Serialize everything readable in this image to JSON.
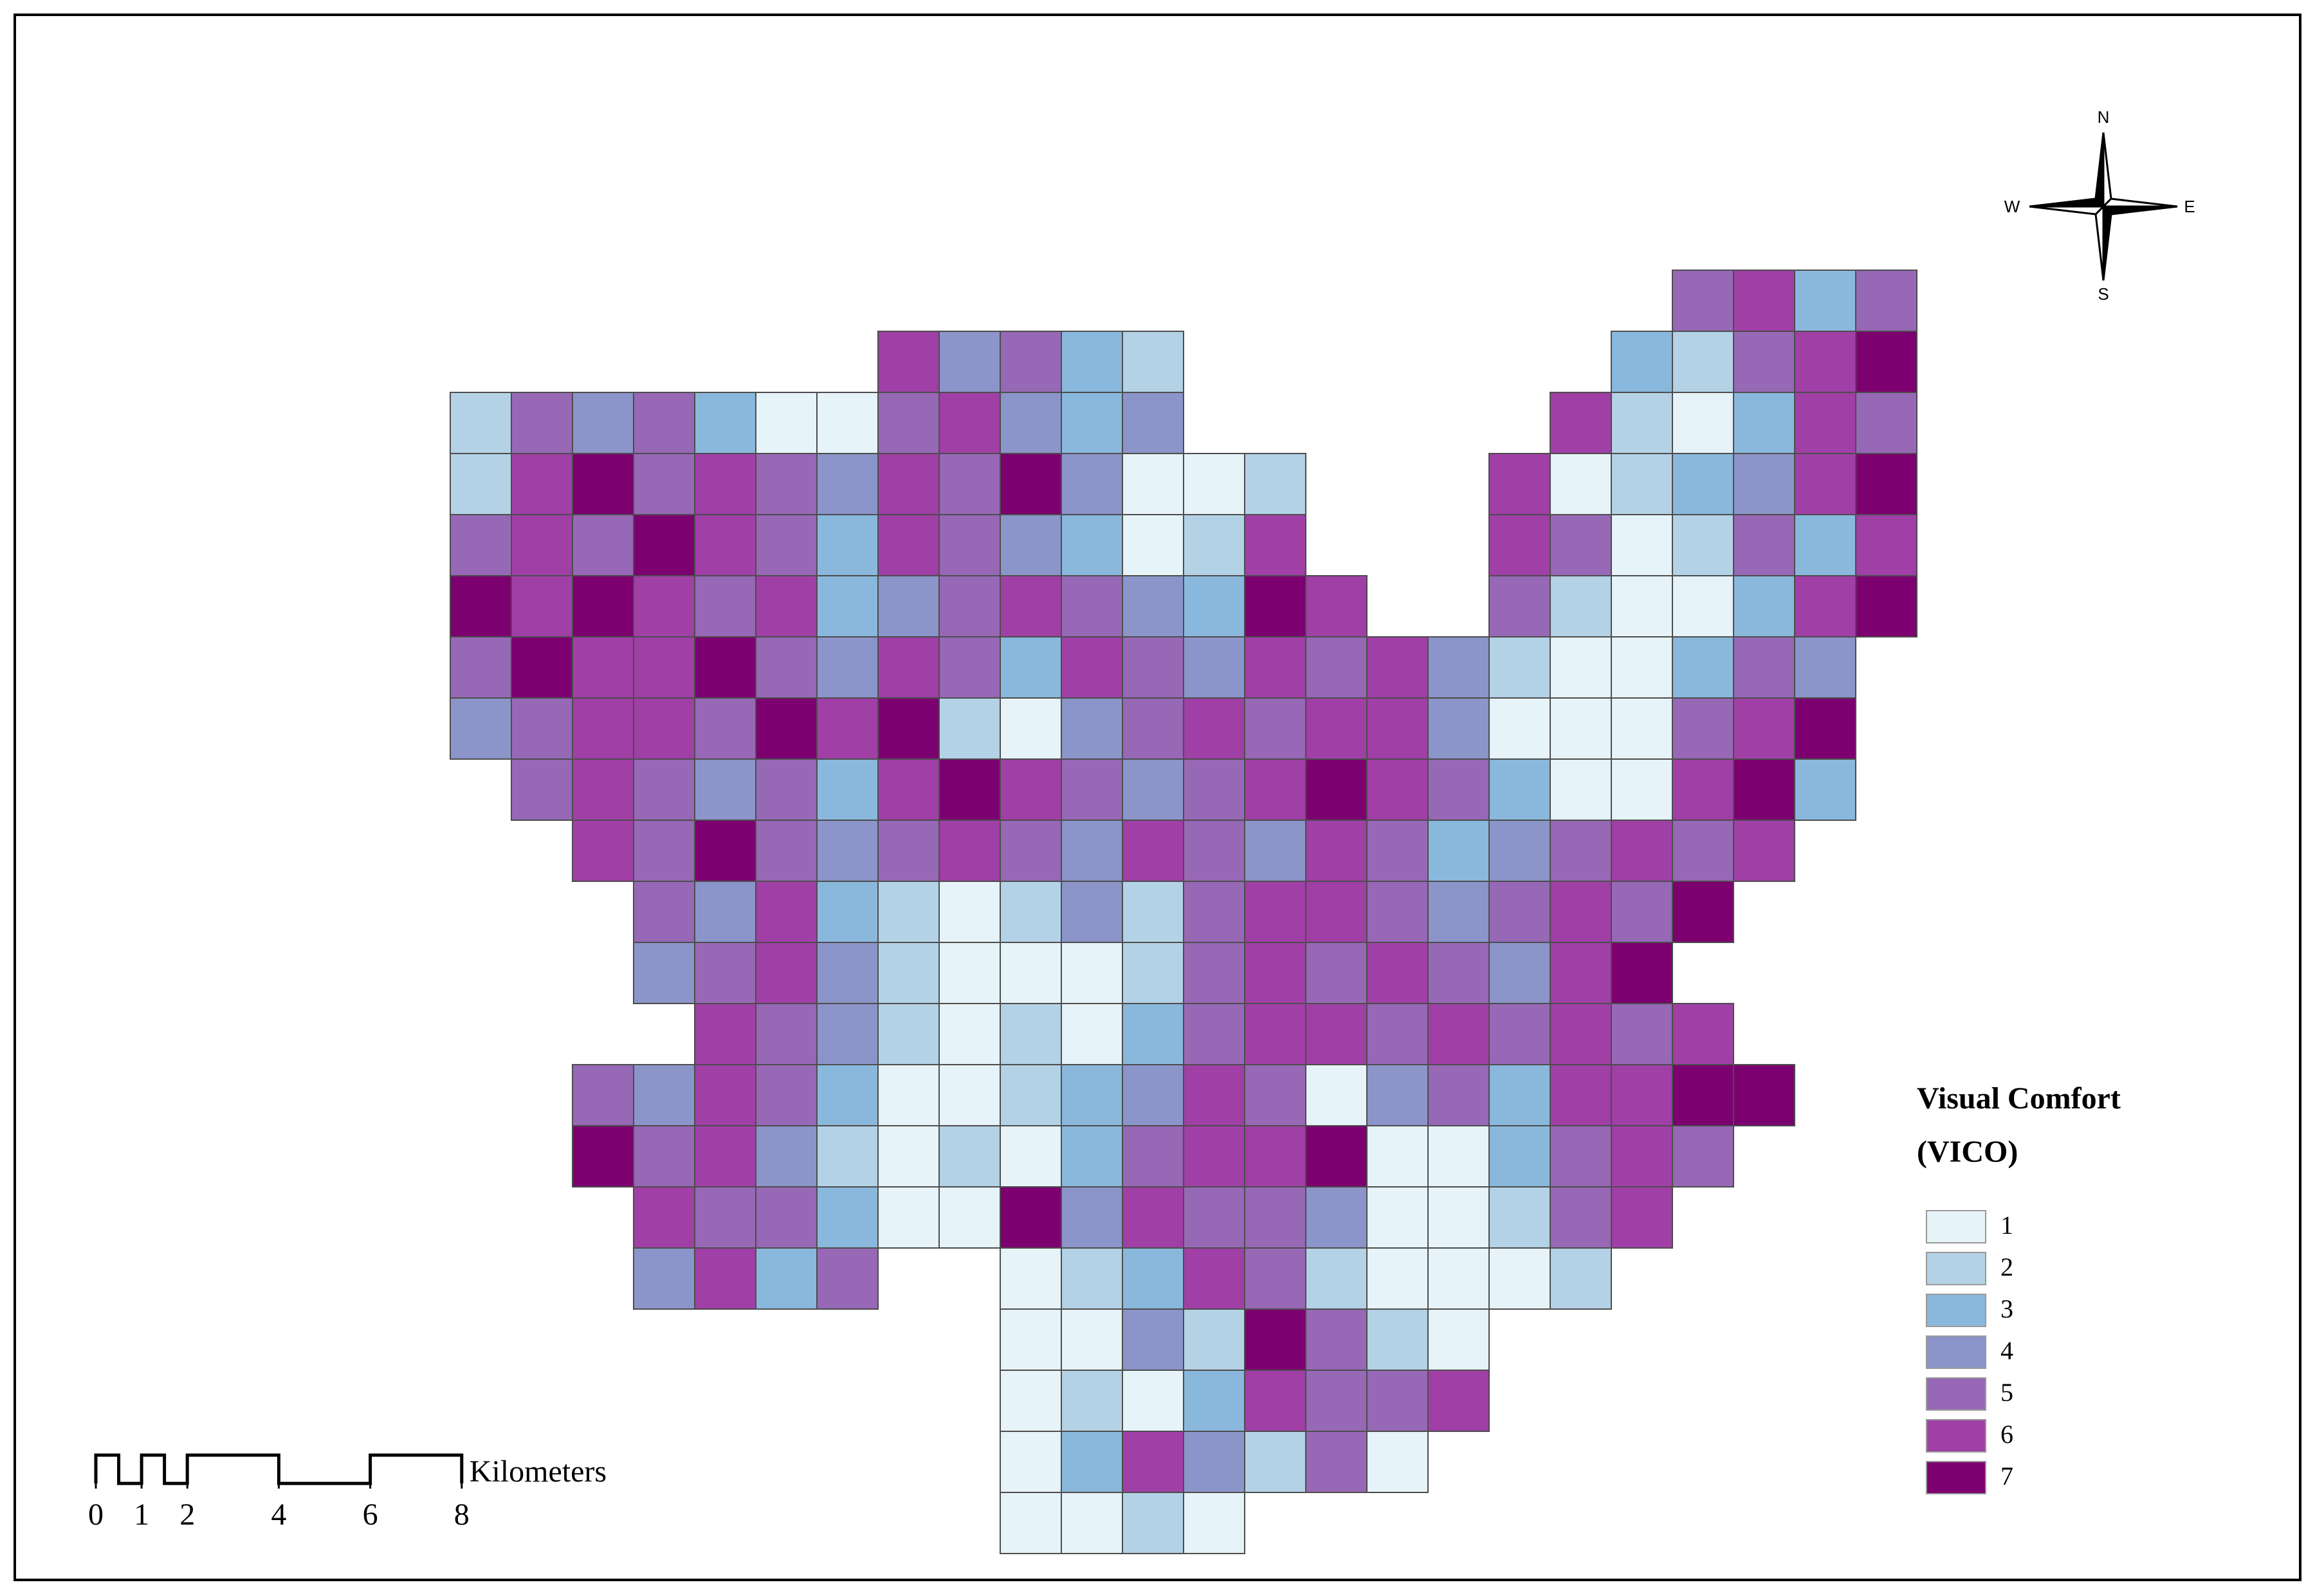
{
  "map": {
    "cells": [
      [
        null,
        null,
        null,
        null,
        null,
        null,
        null,
        null,
        null,
        null,
        null,
        null,
        null,
        null,
        null,
        null,
        null,
        null,
        null,
        null,
        5,
        6,
        3,
        5
      ],
      [
        null,
        null,
        null,
        null,
        null,
        null,
        null,
        6,
        4,
        5,
        3,
        2,
        null,
        null,
        null,
        null,
        null,
        null,
        null,
        3,
        2,
        5,
        6,
        7
      ],
      [
        2,
        5,
        4,
        5,
        3,
        1,
        1,
        5,
        6,
        4,
        3,
        4,
        null,
        null,
        null,
        null,
        null,
        null,
        6,
        2,
        1,
        3,
        6,
        5
      ],
      [
        2,
        6,
        7,
        5,
        6,
        5,
        4,
        6,
        5,
        7,
        4,
        1,
        1,
        2,
        null,
        null,
        null,
        6,
        1,
        2,
        3,
        4,
        6,
        7
      ],
      [
        5,
        6,
        5,
        7,
        6,
        5,
        3,
        6,
        5,
        4,
        3,
        1,
        2,
        6,
        null,
        null,
        null,
        6,
        5,
        1,
        2,
        5,
        3,
        6
      ],
      [
        7,
        6,
        7,
        6,
        5,
        6,
        3,
        4,
        5,
        6,
        5,
        4,
        3,
        7,
        6,
        null,
        null,
        5,
        2,
        1,
        1,
        3,
        6,
        7
      ],
      [
        5,
        7,
        6,
        6,
        7,
        5,
        4,
        6,
        5,
        3,
        6,
        5,
        4,
        6,
        5,
        6,
        4,
        2,
        1,
        1,
        3,
        5,
        4,
        null
      ],
      [
        4,
        5,
        6,
        6,
        5,
        7,
        6,
        7,
        2,
        1,
        4,
        5,
        6,
        5,
        6,
        6,
        4,
        1,
        1,
        1,
        5,
        6,
        7,
        null
      ],
      [
        null,
        5,
        6,
        5,
        4,
        5,
        3,
        6,
        7,
        6,
        5,
        4,
        5,
        6,
        7,
        6,
        5,
        3,
        1,
        1,
        6,
        7,
        3,
        null
      ],
      [
        null,
        null,
        6,
        5,
        7,
        5,
        4,
        5,
        6,
        5,
        4,
        6,
        5,
        4,
        6,
        5,
        3,
        4,
        5,
        6,
        5,
        6,
        null,
        null
      ],
      [
        null,
        null,
        null,
        5,
        4,
        6,
        3,
        2,
        1,
        2,
        4,
        2,
        5,
        6,
        6,
        5,
        4,
        5,
        6,
        5,
        7,
        null,
        null,
        null
      ],
      [
        null,
        null,
        null,
        4,
        5,
        6,
        4,
        2,
        1,
        1,
        1,
        2,
        5,
        6,
        5,
        6,
        5,
        4,
        6,
        7,
        null,
        null,
        null,
        null
      ],
      [
        null,
        null,
        null,
        null,
        6,
        5,
        4,
        2,
        1,
        2,
        1,
        3,
        5,
        6,
        6,
        5,
        6,
        5,
        6,
        5,
        6,
        null,
        null,
        null
      ],
      [
        null,
        null,
        5,
        4,
        6,
        5,
        3,
        1,
        1,
        2,
        3,
        4,
        6,
        5,
        1,
        4,
        5,
        3,
        6,
        6,
        7,
        7,
        null,
        null
      ],
      [
        null,
        null,
        7,
        5,
        6,
        4,
        2,
        1,
        2,
        1,
        3,
        5,
        6,
        6,
        7,
        1,
        1,
        3,
        5,
        6,
        5,
        null,
        null,
        null
      ],
      [
        null,
        null,
        null,
        6,
        5,
        5,
        3,
        1,
        1,
        7,
        4,
        6,
        5,
        5,
        4,
        1,
        1,
        2,
        5,
        6,
        null,
        null,
        null,
        null
      ],
      [
        null,
        null,
        null,
        4,
        6,
        3,
        5,
        null,
        null,
        1,
        2,
        3,
        6,
        5,
        2,
        1,
        1,
        1,
        2,
        null,
        null,
        null,
        null,
        null
      ],
      [
        null,
        null,
        null,
        null,
        null,
        null,
        null,
        null,
        null,
        1,
        1,
        4,
        2,
        7,
        5,
        2,
        1,
        null,
        null,
        null,
        null,
        null,
        null,
        null
      ],
      [
        null,
        null,
        null,
        null,
        null,
        null,
        null,
        null,
        null,
        1,
        2,
        1,
        3,
        6,
        5,
        5,
        6,
        null,
        null,
        null,
        null,
        null,
        null,
        null
      ],
      [
        null,
        null,
        null,
        null,
        null,
        null,
        null,
        null,
        null,
        1,
        3,
        6,
        4,
        2,
        5,
        1,
        null,
        null,
        null,
        null,
        null,
        null,
        null,
        null
      ],
      [
        null,
        null,
        null,
        null,
        null,
        null,
        null,
        null,
        null,
        1,
        1,
        2,
        1,
        null,
        null,
        null,
        null,
        null,
        null,
        null,
        null,
        null,
        null,
        null
      ]
    ]
  },
  "legend": {
    "title": "Visual Comfort",
    "subtitle": "(VICO)",
    "items": [
      {
        "value": 1,
        "color": "#e6f3f8"
      },
      {
        "value": 2,
        "color": "#b4d2e6"
      },
      {
        "value": 3,
        "color": "#8ab8dc"
      },
      {
        "value": 4,
        "color": "#8b95c9"
      },
      {
        "value": 5,
        "color": "#9768b6"
      },
      {
        "value": 6,
        "color": "#a03fa6"
      },
      {
        "value": 7,
        "color": "#7c0070"
      }
    ]
  },
  "scale_bar": {
    "ticks": [
      0,
      1,
      2,
      4,
      6,
      8
    ],
    "unit": "Kilometers"
  },
  "compass": {
    "n": "N",
    "e": "E",
    "s": "S",
    "w": "W"
  }
}
